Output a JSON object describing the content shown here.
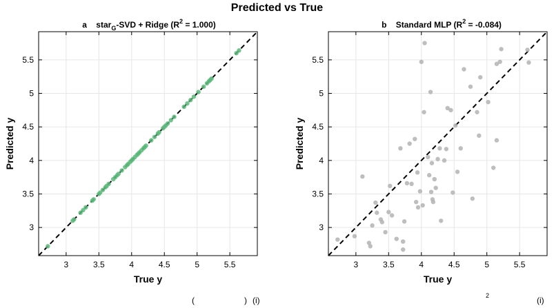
{
  "figure": {
    "suptitle": "Predicted vs True",
    "caption_fragments": [
      "(",
      ")",
      "(i)",
      "2",
      "(i)"
    ]
  },
  "chart_data": [
    {
      "type": "scatter",
      "panel_letter": "a",
      "title_parts": {
        "pre": "star",
        "sub": "G",
        "mid": "-SVD + Ridge (R",
        "sup": "2",
        "post": " = 1.000)"
      },
      "xlabel": "True y",
      "ylabel": "Predicted y",
      "xlim": [
        2.58,
        5.92
      ],
      "ylim": [
        2.58,
        5.92
      ],
      "xticks": [
        3,
        3.5,
        4,
        4.5,
        5,
        5.5
      ],
      "yticks": [
        3,
        3.5,
        4,
        4.5,
        5,
        5.5
      ],
      "tick_labels": [
        "3",
        "3.5",
        "4",
        "4.5",
        "5",
        "5.5"
      ],
      "grid": true,
      "identity_line": true,
      "point_color": "#5cb87a",
      "line_color": "#000000",
      "points": [
        [
          2.72,
          2.72
        ],
        [
          3.1,
          3.1
        ],
        [
          3.12,
          3.12
        ],
        [
          3.22,
          3.22
        ],
        [
          3.26,
          3.26
        ],
        [
          3.3,
          3.3
        ],
        [
          3.4,
          3.4
        ],
        [
          3.42,
          3.42
        ],
        [
          3.5,
          3.5
        ],
        [
          3.52,
          3.52
        ],
        [
          3.56,
          3.56
        ],
        [
          3.6,
          3.6
        ],
        [
          3.62,
          3.62
        ],
        [
          3.65,
          3.65
        ],
        [
          3.72,
          3.72
        ],
        [
          3.75,
          3.75
        ],
        [
          3.78,
          3.78
        ],
        [
          3.8,
          3.8
        ],
        [
          3.85,
          3.85
        ],
        [
          3.9,
          3.9
        ],
        [
          3.93,
          3.93
        ],
        [
          3.95,
          3.95
        ],
        [
          3.98,
          3.98
        ],
        [
          4.0,
          4.0
        ],
        [
          4.02,
          4.02
        ],
        [
          4.05,
          4.05
        ],
        [
          4.08,
          4.08
        ],
        [
          4.1,
          4.1
        ],
        [
          4.12,
          4.12
        ],
        [
          4.15,
          4.15
        ],
        [
          4.18,
          4.18
        ],
        [
          4.2,
          4.2
        ],
        [
          4.22,
          4.22
        ],
        [
          4.3,
          4.3
        ],
        [
          4.35,
          4.35
        ],
        [
          4.4,
          4.4
        ],
        [
          4.42,
          4.42
        ],
        [
          4.48,
          4.48
        ],
        [
          4.5,
          4.5
        ],
        [
          4.52,
          4.52
        ],
        [
          4.55,
          4.55
        ],
        [
          4.6,
          4.6
        ],
        [
          4.65,
          4.65
        ],
        [
          4.8,
          4.8
        ],
        [
          4.85,
          4.85
        ],
        [
          4.9,
          4.9
        ],
        [
          4.95,
          4.95
        ],
        [
          5.02,
          5.02
        ],
        [
          5.1,
          5.1
        ],
        [
          5.15,
          5.15
        ],
        [
          5.18,
          5.18
        ],
        [
          5.2,
          5.2
        ],
        [
          5.22,
          5.22
        ],
        [
          5.6,
          5.6
        ],
        [
          5.64,
          5.64
        ]
      ]
    },
    {
      "type": "scatter",
      "panel_letter": "b",
      "title_parts": {
        "pre": "Standard MLP (R",
        "sub": "",
        "mid": "",
        "sup": "2",
        "post": " = -0.084)"
      },
      "xlabel": "True y",
      "ylabel": "Predicted y",
      "xlim": [
        2.58,
        5.92
      ],
      "ylim": [
        2.58,
        5.92
      ],
      "xticks": [
        3,
        3.5,
        4,
        4.5,
        5,
        5.5
      ],
      "yticks": [
        3,
        3.5,
        4,
        4.5,
        5,
        5.5
      ],
      "tick_labels": [
        "3",
        "3.5",
        "4",
        "4.5",
        "5",
        "5.5"
      ],
      "grid": true,
      "identity_line": true,
      "point_color": "#b3b3b3",
      "line_color": "#000000",
      "points": [
        [
          2.72,
          2.82
        ],
        [
          2.98,
          2.87
        ],
        [
          3.1,
          3.76
        ],
        [
          3.2,
          2.77
        ],
        [
          3.22,
          2.72
        ],
        [
          3.25,
          3.03
        ],
        [
          3.3,
          3.37
        ],
        [
          3.32,
          3.22
        ],
        [
          3.38,
          3.12
        ],
        [
          3.4,
          3.08
        ],
        [
          3.45,
          2.93
        ],
        [
          3.5,
          3.23
        ],
        [
          3.52,
          3.62
        ],
        [
          3.55,
          3.18
        ],
        [
          3.62,
          2.83
        ],
        [
          3.68,
          4.18
        ],
        [
          3.72,
          2.67
        ],
        [
          3.72,
          2.79
        ],
        [
          3.74,
          3.09
        ],
        [
          3.78,
          3.66
        ],
        [
          3.82,
          4.25
        ],
        [
          3.85,
          3.65
        ],
        [
          3.9,
          4.32
        ],
        [
          3.92,
          3.38
        ],
        [
          3.94,
          3.82
        ],
        [
          3.95,
          3.3
        ],
        [
          3.98,
          3.54
        ],
        [
          4.0,
          5.47
        ],
        [
          4.02,
          3.33
        ],
        [
          4.04,
          4.72
        ],
        [
          4.05,
          5.75
        ],
        [
          4.1,
          4.05
        ],
        [
          4.12,
          3.78
        ],
        [
          4.14,
          5.02
        ],
        [
          4.15,
          3.53
        ],
        [
          4.16,
          3.96
        ],
        [
          4.17,
          3.42
        ],
        [
          4.18,
          3.38
        ],
        [
          4.2,
          3.72
        ],
        [
          4.22,
          3.59
        ],
        [
          4.25,
          4.02
        ],
        [
          4.28,
          4.18
        ],
        [
          4.3,
          3.1
        ],
        [
          4.35,
          4.0
        ],
        [
          4.38,
          4.17
        ],
        [
          4.4,
          4.78
        ],
        [
          4.45,
          4.75
        ],
        [
          4.48,
          3.52
        ],
        [
          4.52,
          4.52
        ],
        [
          4.55,
          3.83
        ],
        [
          4.6,
          4.18
        ],
        [
          4.65,
          5.36
        ],
        [
          4.75,
          5.1
        ],
        [
          4.78,
          3.43
        ],
        [
          4.85,
          4.72
        ],
        [
          4.88,
          4.37
        ],
        [
          4.9,
          5.24
        ],
        [
          5.02,
          4.87
        ],
        [
          5.1,
          3.89
        ],
        [
          5.15,
          5.44
        ],
        [
          5.15,
          4.3
        ],
        [
          5.2,
          5.47
        ],
        [
          5.22,
          5.66
        ],
        [
          5.62,
          5.65
        ],
        [
          5.64,
          5.46
        ]
      ]
    }
  ]
}
